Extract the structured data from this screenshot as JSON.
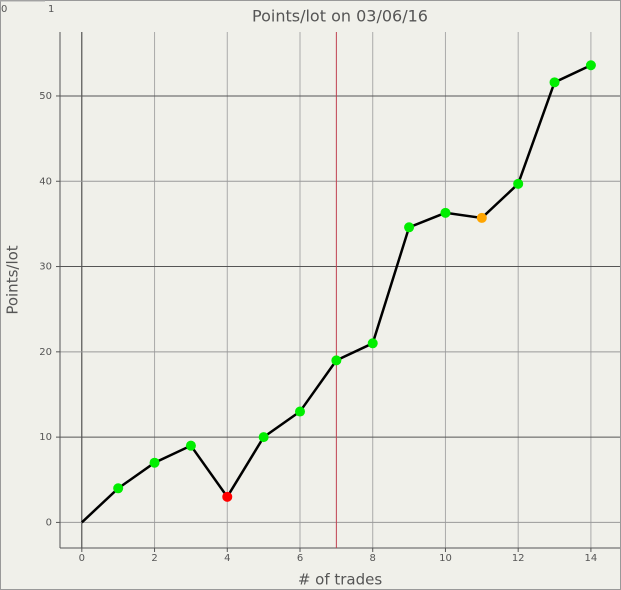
{
  "chart_data": {
    "type": "line",
    "title": "Points/lot on 03/06/16",
    "xlabel": "# of trades",
    "ylabel": "Points/lot",
    "annotations": [
      "0",
      "1"
    ],
    "x": [
      0,
      1,
      2,
      3,
      4,
      5,
      6,
      7,
      8,
      9,
      10,
      11,
      12,
      13,
      14
    ],
    "series": [
      {
        "name": "Points/lot",
        "color": "#000000",
        "values": [
          0,
          4,
          7,
          9,
          3,
          10,
          13,
          19,
          21,
          34.6,
          36.3,
          35.7,
          39.7,
          51.6,
          53.6
        ],
        "point_colors": [
          null,
          "#00ee00",
          "#00ee00",
          "#00ee00",
          "#ff0000",
          "#00ee00",
          "#00ee00",
          "#00ee00",
          "#00ee00",
          "#00ee00",
          "#00ee00",
          "#ffa500",
          "#00ee00",
          "#00ee00",
          "#00ee00"
        ]
      }
    ],
    "vline": {
      "x": 7,
      "color": "#c04050"
    },
    "xlim": [
      -0.6,
      14.8
    ],
    "xticks": [
      0,
      2,
      4,
      6,
      8,
      10,
      12,
      14
    ],
    "ylim": [
      -3,
      57.5
    ],
    "yticks": [
      0,
      10,
      20,
      30,
      40,
      50
    ],
    "grid": true
  }
}
